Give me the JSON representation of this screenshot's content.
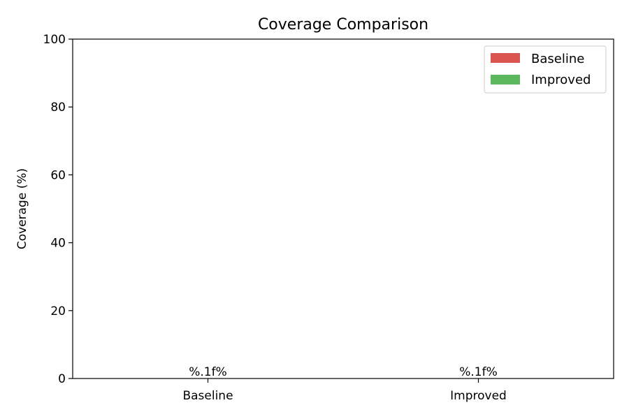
{
  "chart_data": {
    "type": "bar",
    "title": "Coverage Comparison",
    "xlabel": "",
    "ylabel": "Coverage (%)",
    "categories": [
      "Baseline",
      "Improved"
    ],
    "values": [
      0,
      0
    ],
    "data_labels": [
      "%.1f%",
      "%.1f%"
    ],
    "ylim": [
      0,
      100
    ],
    "yticks": [
      0,
      20,
      40,
      60,
      80,
      100
    ],
    "grid": false,
    "legend": {
      "placement": "top-right",
      "entries": [
        {
          "label": "Baseline",
          "color": "#d9534f"
        },
        {
          "label": "Improved",
          "color": "#5cb85c"
        }
      ]
    },
    "colors": [
      "#d9534f",
      "#5cb85c"
    ]
  }
}
